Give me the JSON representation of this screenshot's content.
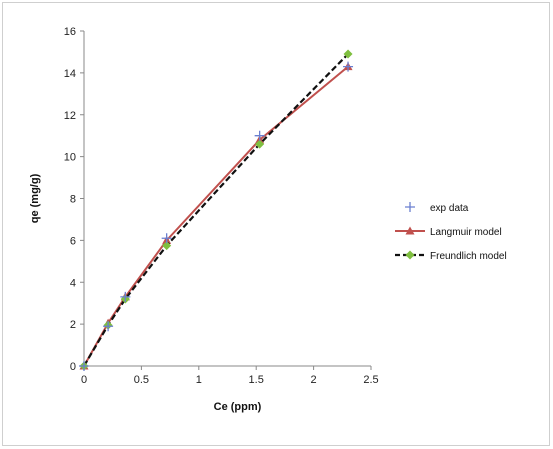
{
  "chart_data": {
    "type": "line",
    "title": "",
    "xlabel": "Ce (ppm)",
    "ylabel": "qe (mg/g)",
    "xlim": [
      0,
      2.5
    ],
    "ylim": [
      0,
      16
    ],
    "x_ticks": [
      0,
      0.5,
      1,
      1.5,
      2,
      2.5
    ],
    "x_tick_labels": [
      "0",
      "0.5",
      "1",
      "1.5",
      "2",
      "2.5"
    ],
    "y_ticks": [
      0,
      2,
      4,
      6,
      8,
      10,
      12,
      14,
      16
    ],
    "y_tick_labels": [
      "0",
      "2",
      "4",
      "6",
      "8",
      "10",
      "12",
      "14",
      "16"
    ],
    "grid": false,
    "legend_position": "right",
    "series": [
      {
        "name": "exp data",
        "style": "markers-plus",
        "color": "#6a7fd0",
        "x": [
          0,
          0.21,
          0.36,
          0.72,
          1.53,
          2.3
        ],
        "y": [
          0,
          1.9,
          3.3,
          6.1,
          11.0,
          14.3
        ]
      },
      {
        "name": "Langmuir model",
        "style": "line-triangle",
        "color": "#c0504d",
        "x": [
          0,
          0.21,
          0.36,
          0.72,
          1.53,
          2.3
        ],
        "y": [
          0,
          2.05,
          3.3,
          6.0,
          10.8,
          14.3
        ]
      },
      {
        "name": "Freundlich model",
        "style": "dashed-diamond",
        "color": "#111111",
        "marker_color": "#7fbf3f",
        "x": [
          0,
          0.21,
          0.36,
          0.72,
          1.53,
          2.3
        ],
        "y": [
          0,
          1.95,
          3.2,
          5.75,
          10.6,
          14.9
        ]
      }
    ]
  }
}
